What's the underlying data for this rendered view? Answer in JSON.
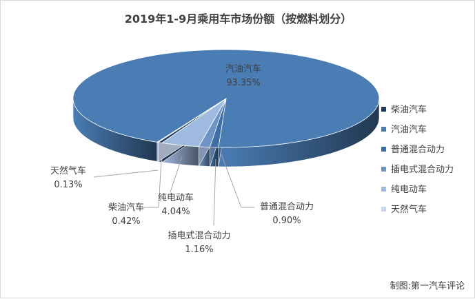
{
  "chart_data": {
    "type": "pie",
    "title": "2019年1-9月乘用车市场份额（按燃料划分）",
    "categories": [
      "柴油汽车",
      "汽油汽车",
      "普通混合动力",
      "插电式混合动力",
      "纯电动车",
      "天然气车"
    ],
    "values": [
      0.42,
      93.35,
      0.9,
      1.16,
      4.04,
      0.13
    ],
    "value_labels": [
      "0.42%",
      "93.35%",
      "0.90%",
      "1.16%",
      "4.04%",
      "0.13%"
    ],
    "colors": [
      "#1f3a5f",
      "#4a7db4",
      "#3f6fa6",
      "#6d93c7",
      "#9fbadf",
      "#c9d8ee"
    ],
    "legend_position": "right",
    "style": "3d"
  },
  "credit": "制图:第一汽车评论"
}
